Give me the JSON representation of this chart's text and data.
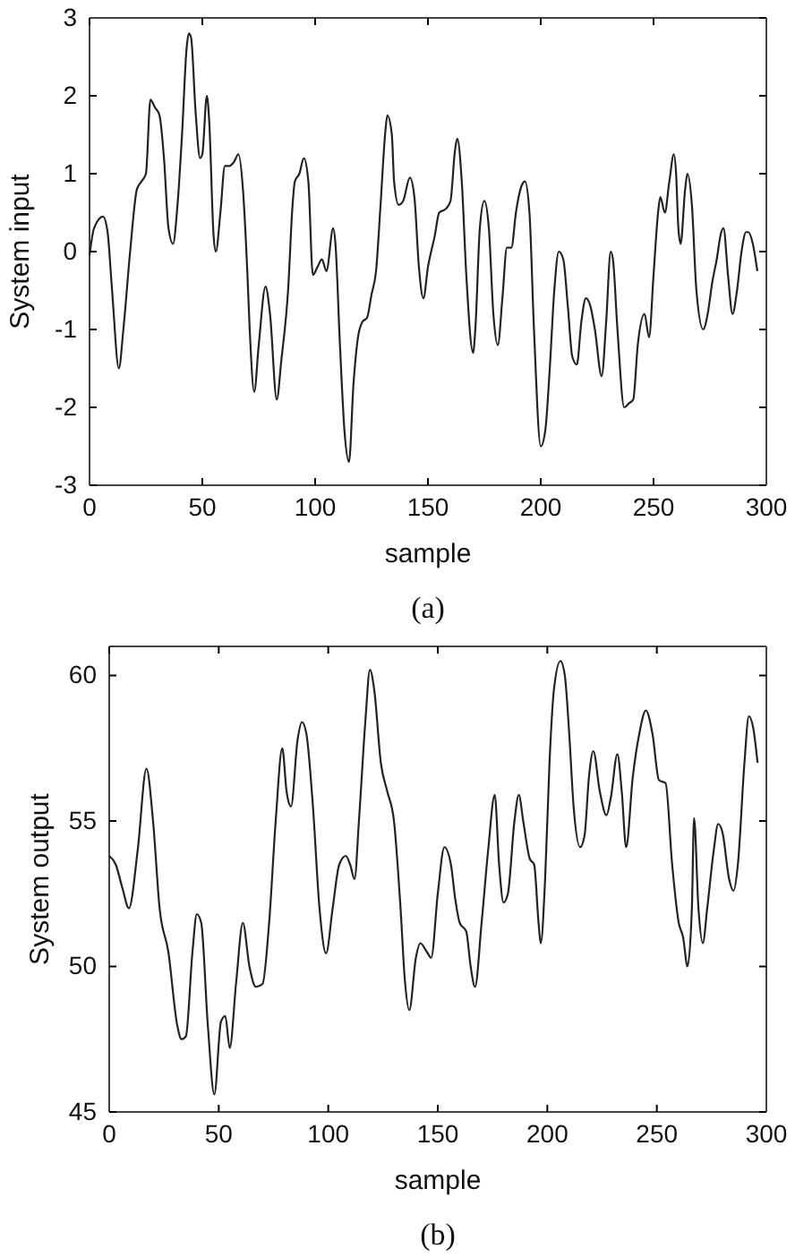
{
  "chart_data": [
    {
      "type": "line",
      "xlabel": "sample",
      "ylabel": "System input",
      "annotations": [
        "(a)"
      ],
      "xlim": [
        0,
        300
      ],
      "ylim": [
        -3,
        3
      ],
      "xticks": [
        0,
        50,
        100,
        150,
        200,
        250,
        300
      ],
      "yticks": [
        -3,
        -2,
        -1,
        0,
        1,
        2,
        3
      ],
      "grid": false,
      "marker": "none",
      "line_style": "solid",
      "series": [
        {
          "color": "#222222",
          "x": [
            0,
            2,
            6,
            8,
            10,
            13,
            15,
            18,
            21,
            23,
            25,
            27,
            29,
            31,
            33,
            35,
            37,
            39,
            41,
            43,
            44,
            45,
            47,
            49,
            50,
            52,
            53,
            55,
            56,
            58,
            60,
            62,
            64,
            66,
            68,
            70,
            71,
            73,
            75,
            78,
            80,
            83,
            85,
            88,
            90,
            91,
            93,
            95,
            97,
            99,
            101,
            103,
            105,
            108,
            109,
            111,
            113,
            115,
            117,
            119,
            121,
            123,
            125,
            127,
            129,
            131,
            132,
            134,
            135,
            137,
            139,
            142,
            144,
            146,
            148,
            150,
            153,
            155,
            158,
            160,
            162,
            163,
            165,
            167,
            170,
            171,
            173,
            175,
            177,
            179,
            181,
            183,
            185,
            187,
            189,
            191,
            193,
            195,
            197,
            200,
            202,
            204,
            206,
            208,
            210,
            212,
            214,
            216,
            218,
            220,
            222,
            224,
            227,
            229,
            231,
            232,
            234,
            237,
            239,
            241,
            243,
            246,
            248,
            250,
            252,
            253,
            255,
            257,
            259,
            260,
            261,
            262,
            264,
            265,
            267,
            269,
            272,
            274,
            276,
            278,
            280,
            281,
            283,
            285,
            287,
            289,
            291,
            292,
            294,
            296
          ],
          "values": [
            -0.05,
            0.3,
            0.45,
            0.25,
            -0.5,
            -1.5,
            -1.0,
            0.0,
            0.8,
            0.9,
            1.0,
            1.95,
            1.85,
            1.75,
            1.2,
            0.3,
            0.1,
            0.6,
            1.5,
            2.6,
            2.8,
            2.75,
            1.8,
            1.2,
            1.25,
            2.0,
            1.7,
            0.2,
            0.0,
            0.5,
            1.1,
            1.1,
            1.15,
            1.25,
            0.8,
            -0.3,
            -1.0,
            -1.8,
            -1.2,
            -0.45,
            -0.8,
            -1.9,
            -1.4,
            -0.5,
            0.6,
            0.9,
            1.0,
            1.2,
            0.9,
            -0.3,
            -0.2,
            -0.1,
            -0.25,
            0.3,
            0.1,
            -1.2,
            -2.3,
            -2.7,
            -1.7,
            -1.1,
            -0.9,
            -0.85,
            -0.55,
            -0.25,
            0.6,
            1.5,
            1.75,
            1.5,
            0.9,
            0.6,
            0.65,
            0.95,
            0.7,
            -0.2,
            -0.6,
            -0.2,
            0.2,
            0.5,
            0.55,
            0.65,
            1.3,
            1.45,
            0.9,
            -0.3,
            -1.3,
            -1.0,
            0.3,
            0.65,
            0.3,
            -0.8,
            -1.2,
            -0.6,
            0.05,
            0.05,
            0.5,
            0.8,
            0.9,
            0.5,
            -1.0,
            -2.5,
            -2.3,
            -1.5,
            -0.5,
            0.0,
            -0.1,
            -0.7,
            -1.35,
            -1.45,
            -0.9,
            -0.6,
            -0.7,
            -1.0,
            -1.6,
            -0.9,
            0.0,
            -0.1,
            -1.0,
            -2.0,
            -1.95,
            -1.9,
            -1.2,
            -0.8,
            -1.1,
            -0.3,
            0.5,
            0.7,
            0.5,
            0.9,
            1.25,
            1.0,
            0.3,
            0.1,
            0.8,
            1.0,
            0.6,
            -0.5,
            -1.0,
            -0.8,
            -0.4,
            -0.1,
            0.25,
            0.3,
            -0.3,
            -0.8,
            -0.5,
            0.0,
            0.25,
            0.25,
            0.1,
            -0.25
          ]
        }
      ]
    },
    {
      "type": "line",
      "xlabel": "sample",
      "ylabel": "System output",
      "annotations": [
        "(b)"
      ],
      "xlim": [
        0,
        300
      ],
      "ylim": [
        45,
        61
      ],
      "xticks": [
        0,
        50,
        100,
        150,
        200,
        250,
        300
      ],
      "yticks": [
        45,
        50,
        55,
        60
      ],
      "grid": false,
      "marker": "none",
      "line_style": "solid",
      "series": [
        {
          "color": "#222222",
          "x": [
            0,
            3,
            6,
            9,
            13,
            17,
            20,
            23,
            27,
            31,
            33,
            35,
            38,
            40,
            42,
            45,
            48,
            51,
            53,
            55,
            58,
            61,
            64,
            67,
            70,
            73,
            76,
            79,
            81,
            83,
            86,
            88,
            90,
            93,
            96,
            99,
            102,
            105,
            108,
            110,
            112,
            114,
            117,
            119,
            121,
            124,
            127,
            130,
            133,
            135,
            137,
            140,
            142,
            145,
            147,
            150,
            153,
            156,
            158,
            160,
            163,
            165,
            167,
            170,
            173,
            176,
            178,
            180,
            182,
            185,
            187,
            189,
            192,
            194,
            196,
            197,
            199,
            201,
            203,
            206,
            208,
            210,
            212,
            215,
            217,
            219,
            221,
            224,
            227,
            229,
            232,
            234,
            236,
            239,
            242,
            245,
            248,
            251,
            254,
            257,
            260,
            262,
            264,
            266,
            267,
            269,
            271,
            273,
            276,
            278,
            280,
            283,
            285,
            287,
            290,
            292,
            294,
            296
          ],
          "values": [
            53.8,
            53.5,
            52.7,
            52.0,
            54.0,
            56.8,
            55.0,
            52.0,
            50.5,
            48.0,
            47.5,
            47.6,
            50.5,
            51.8,
            51.5,
            48.0,
            45.6,
            48.1,
            48.3,
            47.2,
            49.5,
            51.5,
            50.0,
            49.3,
            49.4,
            51.5,
            55.0,
            57.5,
            56.0,
            55.5,
            57.8,
            58.4,
            58.0,
            55.5,
            52.0,
            50.45,
            52.0,
            53.5,
            53.8,
            53.5,
            53.0,
            55.0,
            58.5,
            60.2,
            59.5,
            57.0,
            56.0,
            55.0,
            52.0,
            49.5,
            48.5,
            50.3,
            50.8,
            50.5,
            50.3,
            52.5,
            54.1,
            53.5,
            52.3,
            51.5,
            51.2,
            50.0,
            49.3,
            51.5,
            54.0,
            55.9,
            53.5,
            52.2,
            52.5,
            55.0,
            55.9,
            55.0,
            53.7,
            53.5,
            51.5,
            50.8,
            53.0,
            57.0,
            59.5,
            60.5,
            60.0,
            58.0,
            55.5,
            54.1,
            54.5,
            56.5,
            57.4,
            56.0,
            55.2,
            55.8,
            57.3,
            56.0,
            54.1,
            56.5,
            58.0,
            58.8,
            58.0,
            56.4,
            56.3,
            53.5,
            51.5,
            51.0,
            50.0,
            52.0,
            55.1,
            52.0,
            50.8,
            52.0,
            54.0,
            54.9,
            54.6,
            53.0,
            52.6,
            53.5,
            57.0,
            58.6,
            58.2,
            57.0
          ]
        }
      ]
    }
  ]
}
